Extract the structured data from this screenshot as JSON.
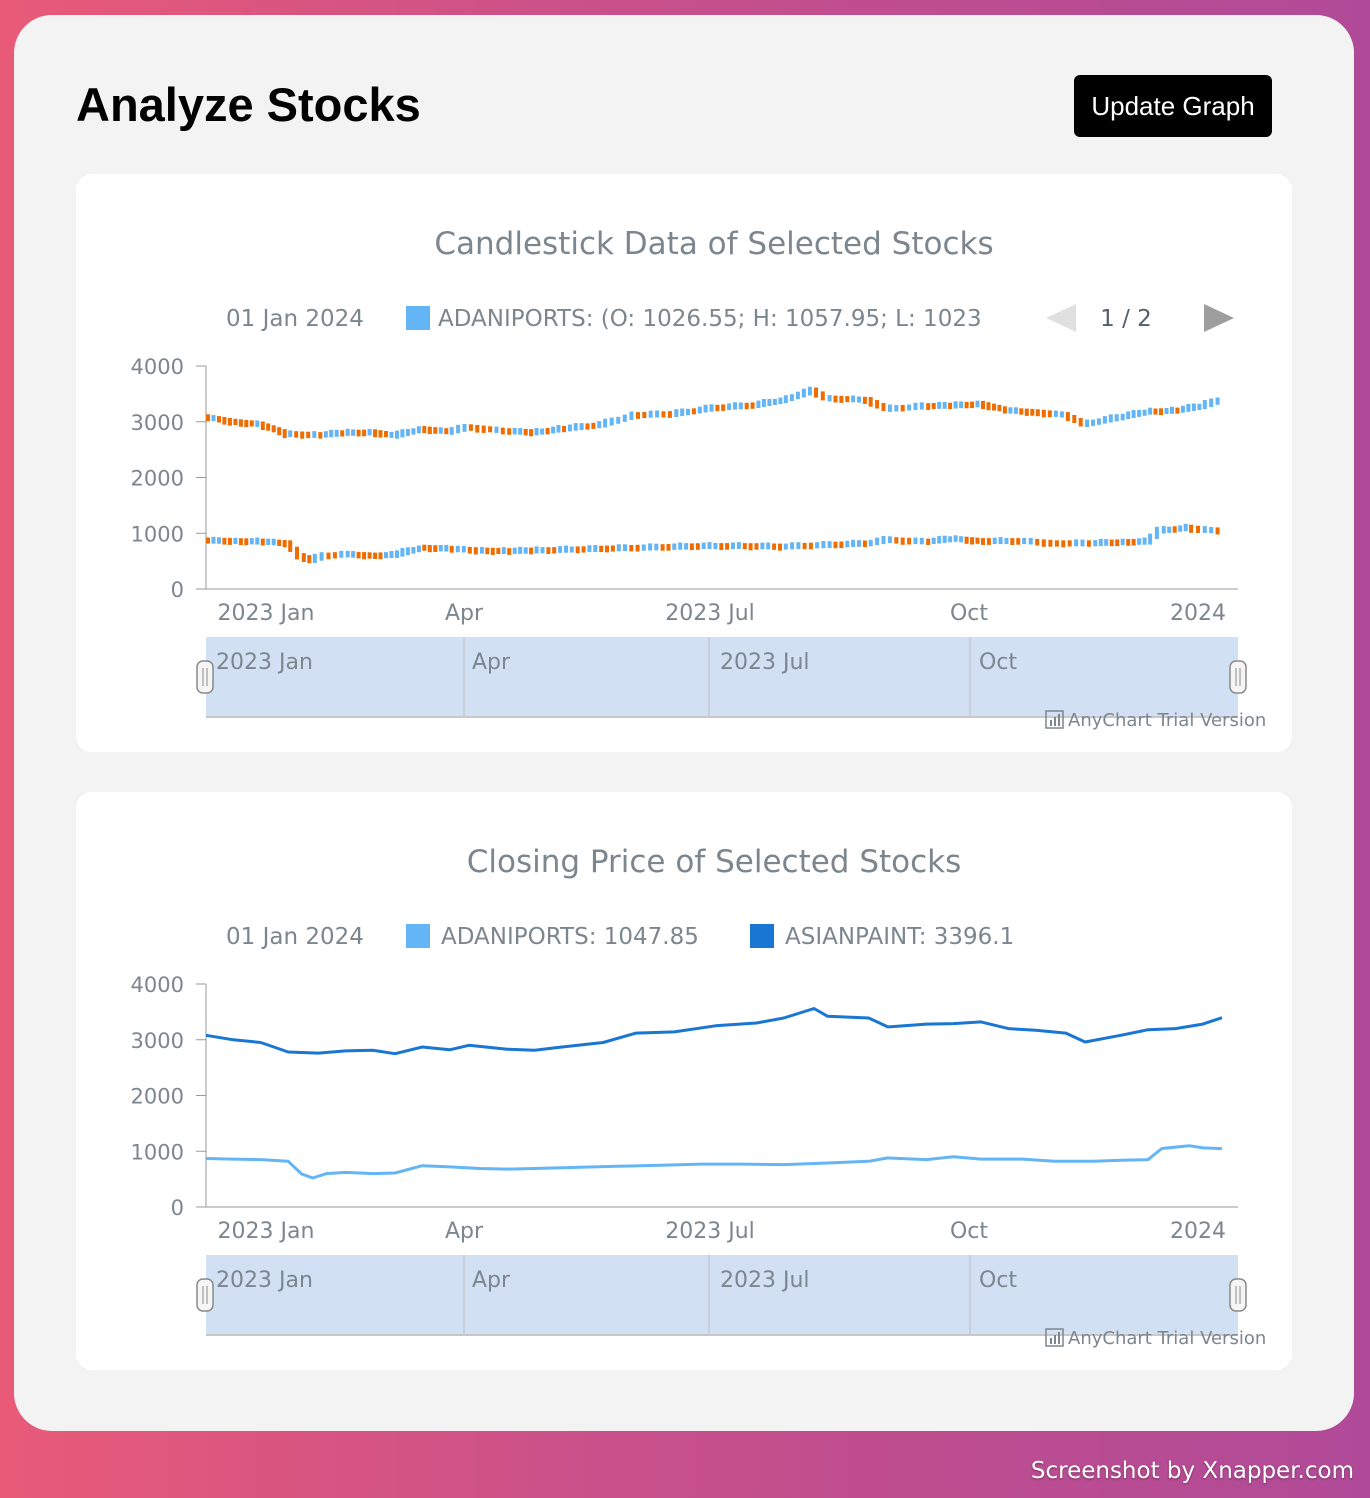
{
  "page": {
    "title": "Analyze Stocks",
    "update_button": "Update Graph",
    "watermark": "Screenshot by Xnapper.com"
  },
  "colors": {
    "up": "#64b5f6",
    "down": "#ef6c00",
    "adaniports": "#64b5f6",
    "asianpaint": "#1976d2",
    "scroller": "#d2e0f4",
    "axis": "#999999",
    "text": "#7c868e"
  },
  "x_axis": {
    "labels": [
      "2023 Jan",
      "Apr",
      "2023 Jul",
      "Oct",
      "2024"
    ],
    "scroller_labels": [
      "2023 Jan",
      "Apr",
      "2023 Jul",
      "Oct"
    ]
  },
  "credit": "AnyChart Trial Version",
  "chart_data": [
    {
      "type": "candlestick",
      "title": "Candlestick Data of Selected Stocks",
      "legend": {
        "date": "01 Jan 2024",
        "entry": "ADANIPORTS: (O: 1026.55; H: 1057.95; L: 1023",
        "paging": "1 / 2"
      },
      "ylim": [
        0,
        4000
      ],
      "yticks": [
        "4000",
        "3000",
        "2000",
        "1000",
        "0"
      ],
      "x_range": [
        "2022-12-26",
        "2024-01-01"
      ],
      "series": [
        {
          "name": "ADANIPORTS",
          "points": [
            [
              "2022-12-26",
              870
            ],
            [
              "2023-01-05",
              860
            ],
            [
              "2023-01-15",
              850
            ],
            [
              "2023-01-25",
              820
            ],
            [
              "2023-01-30",
              590
            ],
            [
              "2023-02-03",
              520
            ],
            [
              "2023-02-08",
              600
            ],
            [
              "2023-02-15",
              620
            ],
            [
              "2023-02-25",
              600
            ],
            [
              "2023-03-05",
              610
            ],
            [
              "2023-03-15",
              740
            ],
            [
              "2023-03-25",
              720
            ],
            [
              "2023-04-05",
              690
            ],
            [
              "2023-04-15",
              680
            ],
            [
              "2023-04-25",
              690
            ],
            [
              "2023-05-10",
              710
            ],
            [
              "2023-05-25",
              730
            ],
            [
              "2023-06-10",
              750
            ],
            [
              "2023-06-25",
              770
            ],
            [
              "2023-07-10",
              770
            ],
            [
              "2023-07-25",
              760
            ],
            [
              "2023-08-10",
              790
            ],
            [
              "2023-08-25",
              820
            ],
            [
              "2023-09-01",
              880
            ],
            [
              "2023-09-15",
              850
            ],
            [
              "2023-09-25",
              900
            ],
            [
              "2023-10-05",
              860
            ],
            [
              "2023-10-20",
              860
            ],
            [
              "2023-11-01",
              820
            ],
            [
              "2023-11-15",
              820
            ],
            [
              "2023-11-25",
              840
            ],
            [
              "2023-12-05",
              850
            ],
            [
              "2023-12-10",
              1050
            ],
            [
              "2023-12-20",
              1100
            ],
            [
              "2023-12-25",
              1060
            ],
            [
              "2024-01-01",
              1048
            ]
          ]
        },
        {
          "name": "ASIANPAINT",
          "points": [
            [
              "2022-12-26",
              3080
            ],
            [
              "2023-01-05",
              3000
            ],
            [
              "2023-01-15",
              2950
            ],
            [
              "2023-01-25",
              2780
            ],
            [
              "2023-02-05",
              2760
            ],
            [
              "2023-02-15",
              2800
            ],
            [
              "2023-02-25",
              2810
            ],
            [
              "2023-03-05",
              2750
            ],
            [
              "2023-03-15",
              2870
            ],
            [
              "2023-03-25",
              2820
            ],
            [
              "2023-04-01",
              2900
            ],
            [
              "2023-04-15",
              2830
            ],
            [
              "2023-04-25",
              2810
            ],
            [
              "2023-05-05",
              2870
            ],
            [
              "2023-05-20",
              2950
            ],
            [
              "2023-06-01",
              3120
            ],
            [
              "2023-06-15",
              3140
            ],
            [
              "2023-06-30",
              3250
            ],
            [
              "2023-07-15",
              3300
            ],
            [
              "2023-07-25",
              3390
            ],
            [
              "2023-08-05",
              3560
            ],
            [
              "2023-08-10",
              3420
            ],
            [
              "2023-08-25",
              3390
            ],
            [
              "2023-09-01",
              3230
            ],
            [
              "2023-09-15",
              3280
            ],
            [
              "2023-09-25",
              3290
            ],
            [
              "2023-10-05",
              3320
            ],
            [
              "2023-10-15",
              3200
            ],
            [
              "2023-10-25",
              3170
            ],
            [
              "2023-11-05",
              3120
            ],
            [
              "2023-11-12",
              2960
            ],
            [
              "2023-11-25",
              3080
            ],
            [
              "2023-12-05",
              3180
            ],
            [
              "2023-12-15",
              3200
            ],
            [
              "2023-12-25",
              3280
            ],
            [
              "2024-01-01",
              3396
            ]
          ]
        }
      ]
    },
    {
      "type": "line",
      "title": "Closing Price of Selected Stocks",
      "legend": {
        "date": "01 Jan 2024",
        "entries": [
          "ADANIPORTS: 1047.85",
          "ASIANPAINT: 3396.1"
        ]
      },
      "ylim": [
        0,
        4000
      ],
      "yticks": [
        "4000",
        "3000",
        "2000",
        "1000",
        "0"
      ],
      "x_range": [
        "2022-12-26",
        "2024-01-01"
      ],
      "series": [
        {
          "name": "ADANIPORTS",
          "points": [
            [
              "2022-12-26",
              870
            ],
            [
              "2023-01-05",
              860
            ],
            [
              "2023-01-15",
              850
            ],
            [
              "2023-01-25",
              820
            ],
            [
              "2023-01-30",
              590
            ],
            [
              "2023-02-03",
              520
            ],
            [
              "2023-02-08",
              600
            ],
            [
              "2023-02-15",
              620
            ],
            [
              "2023-02-25",
              600
            ],
            [
              "2023-03-05",
              610
            ],
            [
              "2023-03-15",
              740
            ],
            [
              "2023-03-25",
              720
            ],
            [
              "2023-04-05",
              690
            ],
            [
              "2023-04-15",
              680
            ],
            [
              "2023-04-25",
              690
            ],
            [
              "2023-05-10",
              710
            ],
            [
              "2023-05-25",
              730
            ],
            [
              "2023-06-10",
              750
            ],
            [
              "2023-06-25",
              770
            ],
            [
              "2023-07-10",
              770
            ],
            [
              "2023-07-25",
              760
            ],
            [
              "2023-08-10",
              790
            ],
            [
              "2023-08-25",
              820
            ],
            [
              "2023-09-01",
              880
            ],
            [
              "2023-09-15",
              850
            ],
            [
              "2023-09-25",
              900
            ],
            [
              "2023-10-05",
              860
            ],
            [
              "2023-10-20",
              860
            ],
            [
              "2023-11-01",
              820
            ],
            [
              "2023-11-15",
              820
            ],
            [
              "2023-11-25",
              840
            ],
            [
              "2023-12-05",
              850
            ],
            [
              "2023-12-10",
              1050
            ],
            [
              "2023-12-20",
              1100
            ],
            [
              "2023-12-25",
              1060
            ],
            [
              "2024-01-01",
              1048
            ]
          ]
        },
        {
          "name": "ASIANPAINT",
          "points": [
            [
              "2022-12-26",
              3080
            ],
            [
              "2023-01-05",
              3000
            ],
            [
              "2023-01-15",
              2950
            ],
            [
              "2023-01-25",
              2780
            ],
            [
              "2023-02-05",
              2760
            ],
            [
              "2023-02-15",
              2800
            ],
            [
              "2023-02-25",
              2810
            ],
            [
              "2023-03-05",
              2750
            ],
            [
              "2023-03-15",
              2870
            ],
            [
              "2023-03-25",
              2820
            ],
            [
              "2023-04-01",
              2900
            ],
            [
              "2023-04-15",
              2830
            ],
            [
              "2023-04-25",
              2810
            ],
            [
              "2023-05-05",
              2870
            ],
            [
              "2023-05-20",
              2950
            ],
            [
              "2023-06-01",
              3120
            ],
            [
              "2023-06-15",
              3140
            ],
            [
              "2023-06-30",
              3250
            ],
            [
              "2023-07-15",
              3300
            ],
            [
              "2023-07-25",
              3390
            ],
            [
              "2023-08-05",
              3560
            ],
            [
              "2023-08-10",
              3420
            ],
            [
              "2023-08-25",
              3390
            ],
            [
              "2023-09-01",
              3230
            ],
            [
              "2023-09-15",
              3280
            ],
            [
              "2023-09-25",
              3290
            ],
            [
              "2023-10-05",
              3320
            ],
            [
              "2023-10-15",
              3200
            ],
            [
              "2023-10-25",
              3170
            ],
            [
              "2023-11-05",
              3120
            ],
            [
              "2023-11-12",
              2960
            ],
            [
              "2023-11-25",
              3080
            ],
            [
              "2023-12-05",
              3180
            ],
            [
              "2023-12-15",
              3200
            ],
            [
              "2023-12-25",
              3280
            ],
            [
              "2024-01-01",
              3396
            ]
          ]
        }
      ]
    }
  ]
}
